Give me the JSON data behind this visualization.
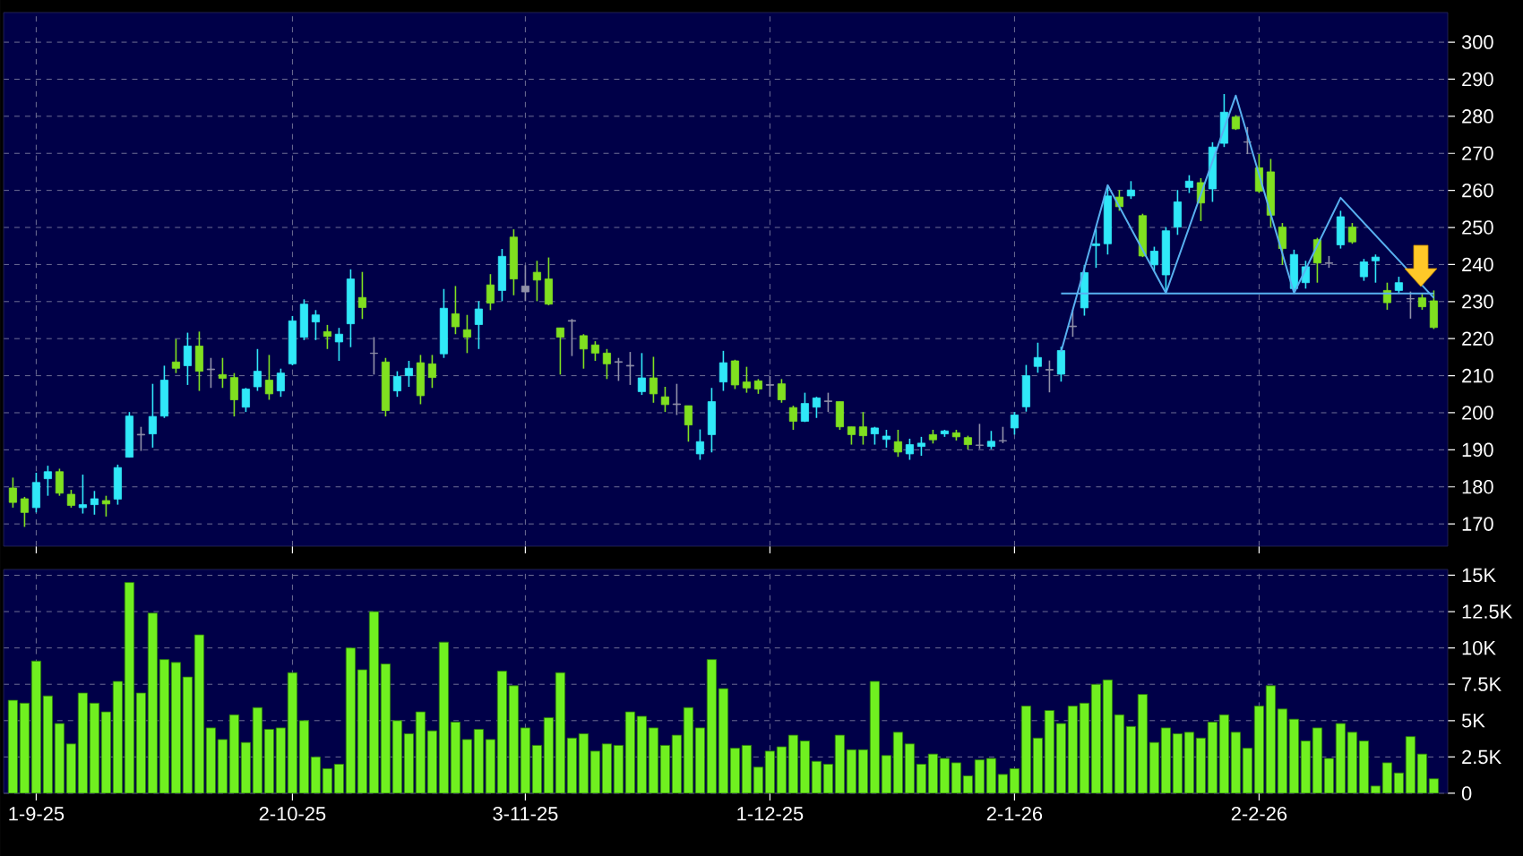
{
  "chart_data": [
    {
      "type": "candlestick",
      "tick_labels": "y",
      "grid": true,
      "ylim": [
        164,
        308
      ],
      "yticks": [
        170,
        180,
        190,
        200,
        210,
        220,
        230,
        240,
        250,
        260,
        270,
        280,
        290,
        300
      ],
      "categories": [
        null,
        null,
        null,
        null,
        null,
        null,
        null,
        null,
        null,
        null,
        null,
        null,
        null,
        null,
        null,
        null,
        null,
        null,
        null,
        null,
        null,
        null,
        null,
        null,
        null,
        null,
        null,
        null,
        null,
        null,
        null,
        null,
        null,
        null,
        null,
        null,
        null,
        null,
        null,
        null,
        null,
        null,
        null,
        null,
        null,
        null,
        null,
        null,
        null,
        null,
        null,
        null,
        null,
        null,
        null,
        null,
        null,
        null,
        null,
        null,
        null,
        null,
        null,
        null,
        null,
        null,
        null,
        null,
        null,
        null,
        null,
        null,
        null,
        null,
        null,
        null,
        null,
        null,
        null,
        null,
        null,
        null,
        null,
        null,
        null,
        null,
        null,
        null,
        null,
        null,
        null,
        null,
        null,
        null,
        null,
        null,
        null,
        null,
        null,
        null,
        null,
        null,
        null,
        null,
        null,
        null,
        null,
        null,
        null,
        null,
        null,
        null,
        null,
        null,
        null,
        null,
        null,
        null,
        null,
        null,
        null,
        null,
        null
      ],
      "ohlc": [
        [
          179.7,
          182.5,
          174.4,
          175.8
        ],
        [
          176.8,
          177.3,
          169.2,
          173.1
        ],
        [
          174.4,
          183.8,
          173.1,
          181.2
        ],
        [
          182.2,
          185.7,
          177.6,
          184.1
        ],
        [
          184.1,
          184.9,
          177.6,
          178.3
        ],
        [
          178.0,
          179.2,
          174.4,
          175.0
        ],
        [
          174.4,
          183.3,
          172.8,
          175.2
        ],
        [
          175.2,
          178.9,
          172.5,
          176.8
        ],
        [
          176.3,
          177.6,
          172.0,
          175.4
        ],
        [
          176.7,
          186.0,
          175.2,
          185.2
        ],
        [
          188.0,
          200.2,
          188.0,
          199.1
        ],
        [
          194.2,
          196.2,
          189.7,
          194.0
        ],
        [
          194.3,
          207.8,
          190.6,
          199.0
        ],
        [
          199.1,
          212.7,
          198.6,
          208.8
        ],
        [
          213.7,
          219.9,
          210.7,
          212.0
        ],
        [
          212.7,
          221.6,
          207.5,
          218.0
        ],
        [
          218.0,
          221.9,
          205.9,
          211.2
        ],
        [
          211.8,
          214.8,
          206.7,
          211.6
        ],
        [
          210.3,
          214.8,
          206.7,
          209.3
        ],
        [
          209.5,
          210.7,
          199.0,
          203.5
        ],
        [
          201.5,
          206.7,
          200.2,
          206.4
        ],
        [
          207.0,
          217.2,
          205.9,
          211.2
        ],
        [
          208.8,
          215.6,
          203.5,
          205.1
        ],
        [
          205.9,
          211.9,
          204.3,
          210.7
        ],
        [
          213.2,
          226.1,
          212.8,
          224.8
        ],
        [
          220.4,
          230.6,
          219.6,
          229.3
        ],
        [
          224.5,
          227.7,
          219.6,
          226.4
        ],
        [
          221.9,
          223.7,
          217.2,
          220.6
        ],
        [
          219.1,
          222.9,
          214.0,
          221.2
        ],
        [
          224.0,
          238.7,
          217.7,
          236.1
        ],
        [
          231.1,
          238.0,
          225.3,
          228.4
        ],
        [
          216.1,
          220.4,
          210.3,
          216.0
        ],
        [
          213.7,
          214.8,
          199.0,
          200.6
        ],
        [
          205.9,
          211.2,
          204.3,
          209.8
        ],
        [
          210.0,
          214.0,
          207.0,
          212.0
        ],
        [
          213.5,
          215.6,
          202.3,
          204.6
        ],
        [
          213.2,
          215.6,
          206.7,
          209.5
        ],
        [
          215.9,
          233.4,
          214.8,
          228.2
        ],
        [
          226.7,
          234.2,
          221.2,
          223.2
        ],
        [
          222.4,
          226.4,
          216.1,
          220.4
        ],
        [
          223.8,
          230.1,
          217.2,
          228.0
        ],
        [
          234.5,
          237.4,
          227.7,
          229.6
        ],
        [
          233.0,
          244.2,
          230.1,
          242.2
        ],
        [
          247.4,
          249.5,
          231.7,
          236.1
        ],
        [
          234.2,
          239.8,
          230.1,
          232.6
        ],
        [
          237.9,
          241.0,
          230.1,
          235.8
        ],
        [
          236.1,
          241.9,
          229.0,
          229.3
        ],
        [
          222.9,
          222.9,
          210.3,
          220.4
        ],
        [
          224.9,
          225.3,
          215.3,
          224.7
        ],
        [
          220.8,
          221.2,
          211.9,
          217.2
        ],
        [
          218.3,
          219.3,
          214.0,
          216.1
        ],
        [
          216.1,
          217.2,
          209.1,
          213.2
        ],
        [
          213.8,
          214.8,
          208.6,
          213.6
        ],
        [
          212.8,
          216.4,
          207.5,
          212.6
        ],
        [
          205.7,
          216.1,
          204.8,
          209.4
        ],
        [
          209.4,
          215.1,
          202.7,
          205.1
        ],
        [
          204.3,
          207.0,
          200.2,
          202.2
        ],
        [
          202.4,
          207.8,
          199.4,
          202.2
        ],
        [
          201.9,
          201.9,
          192.2,
          196.7
        ],
        [
          188.9,
          195.5,
          187.3,
          192.2
        ],
        [
          194.1,
          206.7,
          189.3,
          203.0
        ],
        [
          208.3,
          216.7,
          205.9,
          213.5
        ],
        [
          214.0,
          214.3,
          206.4,
          207.5
        ],
        [
          208.3,
          212.4,
          205.4,
          206.7
        ],
        [
          208.6,
          209.1,
          205.1,
          206.4
        ],
        [
          207.6,
          209.9,
          204.3,
          207.4
        ],
        [
          207.8,
          209.1,
          202.7,
          203.5
        ],
        [
          201.4,
          201.9,
          195.4,
          197.7
        ],
        [
          197.7,
          205.4,
          197.5,
          202.5
        ],
        [
          201.5,
          204.3,
          198.6,
          204.0
        ],
        [
          203.2,
          205.4,
          200.2,
          203.0
        ],
        [
          203.0,
          203.0,
          195.4,
          196.2
        ],
        [
          196.2,
          196.2,
          191.4,
          194.1
        ],
        [
          196.2,
          200.2,
          191.4,
          193.8
        ],
        [
          194.3,
          196.2,
          191.4,
          195.9
        ],
        [
          192.8,
          195.4,
          190.6,
          193.7
        ],
        [
          192.2,
          195.4,
          188.1,
          189.4
        ],
        [
          188.9,
          193.0,
          187.3,
          191.4
        ],
        [
          190.9,
          193.5,
          188.4,
          191.8
        ],
        [
          194.1,
          195.4,
          191.7,
          192.7
        ],
        [
          194.3,
          195.4,
          193.5,
          195.1
        ],
        [
          194.6,
          195.4,
          192.5,
          193.5
        ],
        [
          193.3,
          193.8,
          190.1,
          191.4
        ],
        [
          191.3,
          197.0,
          190.2,
          191.2
        ],
        [
          190.9,
          195.1,
          190.2,
          192.3
        ],
        [
          192.5,
          196.2,
          191.8,
          192.4
        ],
        [
          195.9,
          200.2,
          194.1,
          199.4
        ],
        [
          201.6,
          212.9,
          200.3,
          210.0
        ],
        [
          212.5,
          218.9,
          210.8,
          214.9
        ],
        [
          211.7,
          214.1,
          205.5,
          211.5
        ],
        [
          210.4,
          217.8,
          208.4,
          216.8
        ],
        [
          223.4,
          227.8,
          220.5,
          223.2
        ],
        [
          228.3,
          239.9,
          226.2,
          237.8
        ],
        [
          245.1,
          249.6,
          239.1,
          245.6
        ],
        [
          245.6,
          260.9,
          242.7,
          258.5
        ],
        [
          258.2,
          260.1,
          254.5,
          255.6
        ],
        [
          258.5,
          262.5,
          257.7,
          260.1
        ],
        [
          253.2,
          253.7,
          242.0,
          242.3
        ],
        [
          239.9,
          244.8,
          238.3,
          243.6
        ],
        [
          237.2,
          250.1,
          232.3,
          249.1
        ],
        [
          250.1,
          260.1,
          248.0,
          256.9
        ],
        [
          260.8,
          264.1,
          259.3,
          262.5
        ],
        [
          262.1,
          263.3,
          251.7,
          256.6
        ],
        [
          260.4,
          273.0,
          256.9,
          271.7
        ],
        [
          272.7,
          286.0,
          271.7,
          281.1
        ],
        [
          279.8,
          280.3,
          276.3,
          276.6
        ],
        [
          273.1,
          277.1,
          269.8,
          273.0
        ],
        [
          266.1,
          269.8,
          259.3,
          259.8
        ],
        [
          265.0,
          268.5,
          250.1,
          253.3
        ],
        [
          250.1,
          251.2,
          239.9,
          244.3
        ],
        [
          233.5,
          244.0,
          233.0,
          242.7
        ],
        [
          235.1,
          241.0,
          233.5,
          239.4
        ],
        [
          246.7,
          247.2,
          235.1,
          240.4
        ],
        [
          240.5,
          242.3,
          239.1,
          240.3
        ],
        [
          245.3,
          254.5,
          244.3,
          252.9
        ],
        [
          250.1,
          251.2,
          245.6,
          246.1
        ],
        [
          236.7,
          241.5,
          235.6,
          240.7
        ],
        [
          241.0,
          242.7,
          235.1,
          242.0
        ],
        [
          233.0,
          235.1,
          227.8,
          229.7
        ],
        [
          233.0,
          236.7,
          232.3,
          235.1
        ],
        [
          230.8,
          232.7,
          225.4,
          230.7
        ],
        [
          231.0,
          232.3,
          227.8,
          228.6
        ],
        [
          230.2,
          233.0,
          222.6,
          223.0
        ]
      ],
      "colors": [
        "#80e020",
        "#80e020",
        "#30e8f8",
        "#30e8f8",
        "#80e020",
        "#80e020",
        "#30e8f8",
        "#30e8f8",
        "#80e020",
        "#30e8f8",
        "#30e8f8",
        "#9090a8",
        "#30e8f8",
        "#30e8f8",
        "#80e020",
        "#30e8f8",
        "#80e020",
        "#9090a8",
        "#80e020",
        "#80e020",
        "#30e8f8",
        "#30e8f8",
        "#80e020",
        "#30e8f8",
        "#30e8f8",
        "#30e8f8",
        "#30e8f8",
        "#80e020",
        "#30e8f8",
        "#30e8f8",
        "#80e020",
        "#9090a8",
        "#80e020",
        "#30e8f8",
        "#30e8f8",
        "#80e020",
        "#80e020",
        "#30e8f8",
        "#80e020",
        "#80e020",
        "#30e8f8",
        "#80e020",
        "#30e8f8",
        "#80e020",
        "#9090a8",
        "#80e020",
        "#80e020",
        "#80e020",
        "#9090a8",
        "#80e020",
        "#80e020",
        "#80e020",
        "#9090a8",
        "#9090a8",
        "#30e8f8",
        "#80e020",
        "#80e020",
        "#9090a8",
        "#80e020",
        "#30e8f8",
        "#30e8f8",
        "#30e8f8",
        "#80e020",
        "#80e020",
        "#80e020",
        "#9090a8",
        "#80e020",
        "#80e020",
        "#30e8f8",
        "#30e8f8",
        "#9090a8",
        "#80e020",
        "#80e020",
        "#80e020",
        "#30e8f8",
        "#30e8f8",
        "#80e020",
        "#30e8f8",
        "#30e8f8",
        "#80e020",
        "#30e8f8",
        "#80e020",
        "#80e020",
        "#9090a8",
        "#30e8f8",
        "#9090a8",
        "#30e8f8",
        "#30e8f8",
        "#30e8f8",
        "#9090a8",
        "#30e8f8",
        "#9090a8",
        "#30e8f8",
        "#30e8f8",
        "#30e8f8",
        "#80e020",
        "#30e8f8",
        "#80e020",
        "#30e8f8",
        "#30e8f8",
        "#30e8f8",
        "#30e8f8",
        "#80e020",
        "#30e8f8",
        "#30e8f8",
        "#80e020",
        "#9090a8",
        "#80e020",
        "#80e020",
        "#80e020",
        "#30e8f8",
        "#30e8f8",
        "#80e020",
        "#9090a8",
        "#30e8f8",
        "#80e020",
        "#30e8f8",
        "#30e8f8",
        "#80e020",
        "#30e8f8",
        "#9090a8",
        "#80e020",
        "#80e020"
      ],
      "series": [
        {
          "type": "line",
          "color": "#58b0f0",
          "values": [
            null,
            null,
            null,
            null,
            null,
            null,
            null,
            null,
            null,
            null,
            null,
            null,
            null,
            null,
            null,
            null,
            null,
            null,
            null,
            null,
            null,
            null,
            null,
            null,
            null,
            null,
            null,
            null,
            null,
            null,
            null,
            null,
            null,
            null,
            null,
            null,
            null,
            null,
            null,
            null,
            null,
            null,
            null,
            null,
            null,
            null,
            null,
            null,
            null,
            null,
            null,
            null,
            null,
            null,
            null,
            null,
            null,
            null,
            null,
            null,
            null,
            null,
            null,
            null,
            null,
            null,
            null,
            null,
            null,
            null,
            null,
            null,
            null,
            null,
            null,
            null,
            null,
            null,
            null,
            null,
            null,
            null,
            null,
            null,
            null,
            null,
            null,
            null,
            null,
            null,
            216.5,
            null,
            null,
            null,
            261.4,
            null,
            null,
            null,
            null,
            232.3,
            null,
            null,
            null,
            null,
            null,
            285.6,
            null,
            null,
            null,
            null,
            232.3,
            null,
            null,
            null,
            258.0,
            null,
            null,
            null,
            null,
            null,
            null,
            null,
            231.0
          ]
        },
        {
          "type": "line",
          "color": "#58b0f0",
          "values": [
            null,
            null,
            null,
            null,
            null,
            null,
            null,
            null,
            null,
            null,
            null,
            null,
            null,
            null,
            null,
            null,
            null,
            null,
            null,
            null,
            null,
            null,
            null,
            null,
            null,
            null,
            null,
            null,
            null,
            null,
            null,
            null,
            null,
            null,
            null,
            null,
            null,
            null,
            null,
            null,
            null,
            null,
            null,
            null,
            null,
            null,
            null,
            null,
            null,
            null,
            null,
            null,
            null,
            null,
            null,
            null,
            null,
            null,
            null,
            null,
            null,
            null,
            null,
            null,
            null,
            null,
            null,
            null,
            null,
            null,
            null,
            null,
            null,
            null,
            null,
            null,
            null,
            null,
            null,
            null,
            null,
            null,
            null,
            null,
            null,
            null,
            null,
            null,
            null,
            null,
            232.2,
            null,
            null,
            null,
            null,
            null,
            null,
            null,
            null,
            null,
            null,
            null,
            null,
            null,
            null,
            null,
            null,
            null,
            null,
            null,
            null,
            null,
            null,
            null,
            null,
            null,
            null,
            null,
            null,
            null,
            null,
            null,
            232.2
          ]
        }
      ]
    },
    {
      "type": "bar",
      "color": "#70f020",
      "grid": true,
      "ylim": [
        0,
        15400
      ],
      "yticks": [
        {
          "value": 0,
          "label": "0"
        },
        {
          "value": 2500,
          "label": "2.5K"
        },
        {
          "value": 5000,
          "label": "5K"
        },
        {
          "value": 7500,
          "label": "7.5K"
        },
        {
          "value": 10000,
          "label": "10K"
        },
        {
          "value": 12500,
          "label": "12.5K"
        },
        {
          "value": 15000,
          "label": "15K"
        }
      ],
      "categories": [
        null,
        null,
        "1-9-25",
        null,
        null,
        null,
        null,
        null,
        null,
        null,
        null,
        null,
        null,
        null,
        null,
        null,
        null,
        null,
        null,
        null,
        null,
        null,
        null,
        null,
        "2-10-25",
        null,
        null,
        null,
        null,
        null,
        null,
        null,
        null,
        null,
        null,
        null,
        null,
        null,
        null,
        null,
        null,
        null,
        null,
        null,
        "3-11-25",
        null,
        null,
        null,
        null,
        null,
        null,
        null,
        null,
        null,
        null,
        null,
        null,
        null,
        null,
        null,
        null,
        null,
        null,
        null,
        null,
        "1-12-25",
        null,
        null,
        null,
        null,
        null,
        null,
        null,
        null,
        null,
        null,
        null,
        null,
        null,
        null,
        null,
        null,
        null,
        null,
        null,
        null,
        "2-1-26",
        null,
        null,
        null,
        null,
        null,
        null,
        null,
        null,
        null,
        null,
        null,
        null,
        null,
        null,
        null,
        null,
        null,
        null,
        null,
        null,
        "2-2-26",
        null,
        null,
        null,
        null,
        null,
        null,
        null,
        null,
        null,
        null,
        null,
        null,
        null,
        null,
        null
      ],
      "values": [
        6400,
        6200,
        9100,
        6700,
        4800,
        3400,
        6900,
        6200,
        5600,
        7700,
        14500,
        6900,
        12400,
        9200,
        9000,
        8000,
        10900,
        4500,
        3700,
        5400,
        3500,
        5900,
        4400,
        4500,
        8300,
        5000,
        2500,
        1700,
        2000,
        10000,
        8500,
        12500,
        8900,
        5000,
        4100,
        5600,
        4300,
        10400,
        4900,
        3700,
        4400,
        3700,
        8400,
        7400,
        4500,
        3300,
        5200,
        8300,
        3800,
        4100,
        2900,
        3400,
        3300,
        5600,
        5300,
        4500,
        3300,
        4000,
        5900,
        4500,
        9200,
        7200,
        3100,
        3300,
        1800,
        2900,
        3200,
        4000,
        3600,
        2200,
        2000,
        4000,
        3000,
        3000,
        7700,
        2600,
        4200,
        3400,
        2000,
        2700,
        2400,
        2100,
        1200,
        2300,
        2400,
        1300,
        1700,
        6000,
        3800,
        5700,
        4800,
        6000,
        6200,
        7500,
        7800,
        5400,
        4600,
        6800,
        3500,
        4500,
        4100,
        4200,
        3800,
        4900,
        5400,
        4200,
        3100,
        6000,
        7400,
        5800,
        5100,
        3600,
        4500,
        2400,
        4800,
        4200,
        3600,
        500,
        2100,
        1400,
        3900,
        2700,
        1000
      ]
    }
  ]
}
